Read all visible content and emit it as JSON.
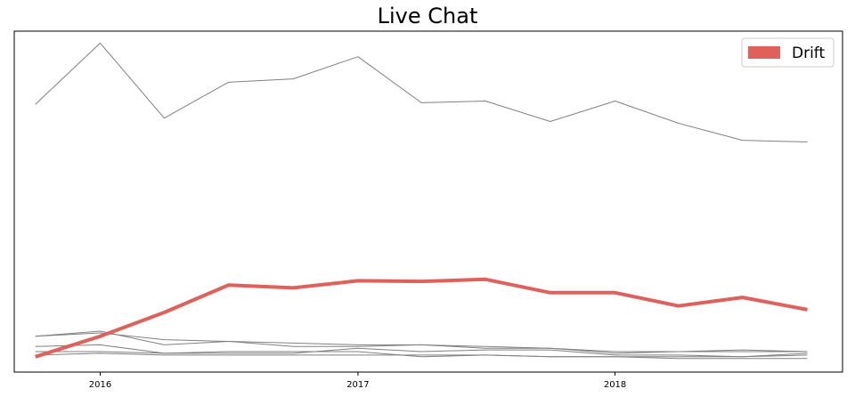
{
  "chart_data": {
    "type": "line",
    "title": "Live Chat",
    "xlabel": "",
    "ylabel": "",
    "x": [
      "2015-10-01",
      "2016-01-01",
      "2016-04-01",
      "2016-07-01",
      "2016-10-01",
      "2017-01-01",
      "2017-04-01",
      "2017-07-01",
      "2017-10-01",
      "2018-01-01",
      "2018-04-01",
      "2018-07-01",
      "2018-10-01"
    ],
    "xtick_labels": [
      "2016",
      "2017",
      "2018"
    ],
    "xtick_values": [
      "2016-01-01",
      "2017-01-01",
      "2018-01-01"
    ],
    "xlim": [
      "2015-09-01",
      "2018-11-20"
    ],
    "ylim": [
      0,
      100
    ],
    "yticks_visible": false,
    "grid": false,
    "legend_position": "top-right",
    "series": [
      {
        "name": "Drift",
        "highlight": true,
        "color": "#e0605a",
        "values": [
          4.5,
          10.5,
          17.5,
          25.5,
          24.7,
          26.8,
          26.6,
          27.2,
          23.3,
          23.3,
          19.4,
          21.9,
          18.3
        ]
      },
      {
        "values": [
          78.5,
          96.5,
          74.5,
          85.0,
          86.0,
          92.5,
          79.0,
          79.5,
          73.5,
          79.5,
          73.0,
          68.0,
          67.5
        ]
      },
      {
        "values": [
          10.5,
          11.5,
          9.5,
          9.0,
          8.5,
          8.0,
          8.0,
          7.5,
          7.0,
          6.0,
          6.0,
          6.0,
          6.0
        ]
      },
      {
        "values": [
          10.5,
          12.0,
          8.0,
          9.0,
          7.5,
          7.5,
          8.0,
          7.0,
          7.0,
          5.5,
          6.0,
          6.5,
          6.0
        ]
      },
      {
        "values": [
          7.5,
          8.0,
          5.5,
          5.5,
          5.5,
          7.0,
          6.0,
          6.5,
          6.5,
          5.0,
          5.0,
          4.5,
          5.0
        ]
      },
      {
        "values": [
          6.0,
          6.0,
          5.5,
          6.0,
          6.0,
          6.0,
          4.5,
          5.0,
          4.5,
          4.5,
          4.5,
          4.5,
          5.5
        ]
      },
      {
        "values": [
          5.0,
          5.5,
          5.0,
          5.0,
          5.0,
          5.0,
          5.0,
          5.0,
          4.5,
          4.5,
          4.0,
          4.0,
          4.0
        ]
      }
    ],
    "colors": {
      "highlight": "#e0605a",
      "context": "#808080",
      "axes": "#000000"
    }
  }
}
